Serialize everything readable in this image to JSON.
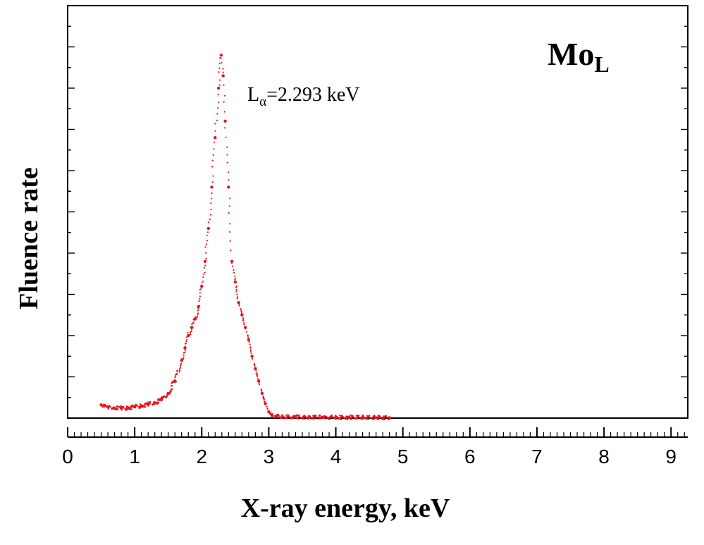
{
  "chart_data": {
    "type": "scatter",
    "title": "Mo",
    "title_subscript": "L",
    "annotation": {
      "main": "L",
      "subscript": "α",
      "text": "=2.293 keV",
      "x": 2.293
    },
    "xlabel": "X-ray energy, keV",
    "ylabel": "Fluence rate",
    "xlim": [
      0,
      9.25
    ],
    "ylim": [
      0,
      1.0
    ],
    "x_ticks": [
      0,
      1,
      2,
      3,
      4,
      5,
      6,
      7,
      8,
      9
    ],
    "x_tick_labels": [
      "0",
      "1",
      "2",
      "3",
      "4",
      "5",
      "6",
      "7",
      "8",
      "9"
    ],
    "y_tick_labels_shown": false,
    "grid": false,
    "marker_color": "#e8141b",
    "series": [
      {
        "x": [
          0.5,
          0.6,
          0.7,
          0.8,
          0.9,
          1.0,
          1.1,
          1.2,
          1.3,
          1.4,
          1.5,
          1.6,
          1.7,
          1.75,
          1.8,
          1.85,
          1.9,
          1.95,
          2.0,
          2.05,
          2.1,
          2.15,
          2.2,
          2.25,
          2.29,
          2.32,
          2.35,
          2.4,
          2.45,
          2.5,
          2.55,
          2.6,
          2.65,
          2.7,
          2.75,
          2.8,
          2.85,
          2.9,
          2.95,
          3.0,
          3.05,
          3.1,
          3.2,
          3.4,
          3.6,
          3.8,
          4.0,
          4.2,
          4.4,
          4.6,
          4.8
        ],
        "y": [
          0.032,
          0.027,
          0.024,
          0.024,
          0.025,
          0.027,
          0.03,
          0.033,
          0.037,
          0.045,
          0.06,
          0.09,
          0.14,
          0.17,
          0.2,
          0.22,
          0.24,
          0.27,
          0.32,
          0.38,
          0.46,
          0.56,
          0.68,
          0.8,
          0.88,
          0.83,
          0.72,
          0.56,
          0.38,
          0.33,
          0.28,
          0.25,
          0.22,
          0.19,
          0.15,
          0.12,
          0.09,
          0.06,
          0.035,
          0.015,
          0.006,
          0.004,
          0.003,
          0.003,
          0.002,
          0.002,
          0.002,
          0.002,
          0.002,
          0.001,
          0.001
        ]
      }
    ]
  }
}
